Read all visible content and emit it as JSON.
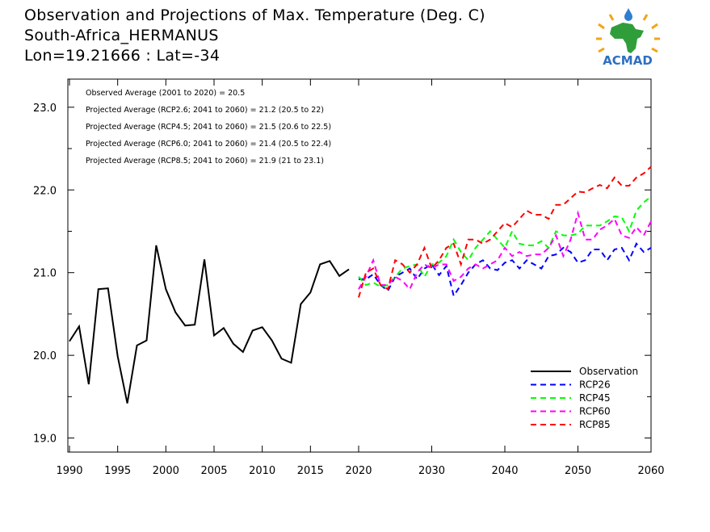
{
  "chart_data": {
    "type": "line",
    "title": [
      "Observation and Projections of Max. Temperature (Deg. C)",
      "South-Africa_HERMANUS",
      "Lon=19.21666 : Lat=-34"
    ],
    "logo_text": "ACMAD",
    "annotations": [
      "Observed Average (2001 to 2020) = 20.5",
      "Projected Average (RCP2.6; 2041 to 2060) = 21.2 (20.5 to 22)",
      "Projected Average (RCP4.5; 2041 to 2060) = 21.5 (20.6 to 22.5)",
      "Projected Average (RCP6.0; 2041 to 2060) = 21.4 (20.5 to 22.4)",
      "Projected Average (RCP8.5; 2041 to 2060) = 21.9 (21 to 23.1)"
    ],
    "ylim": [
      18.83,
      23.34
    ],
    "yticks": [
      "19.0",
      "20.0",
      "21.0",
      "22.0",
      "23.0"
    ],
    "xticks": [
      "1990",
      "1995",
      "2000",
      "2005",
      "2010",
      "2015",
      "2020",
      "2030",
      "2040",
      "2050",
      "2060"
    ],
    "legend_position": "bottom-right",
    "grid": false,
    "observation": {
      "name": "Observation",
      "color": "#000000",
      "style": "solid",
      "x": [
        1990,
        1991,
        1992,
        1993,
        1994,
        1995,
        1996,
        1997,
        1998,
        1999,
        2000,
        2001,
        2002,
        2003,
        2004,
        2005,
        2006,
        2007,
        2008,
        2009,
        2010,
        2011,
        2012,
        2013,
        2014,
        2015,
        2016,
        2017,
        2018,
        2019
      ],
      "values": [
        20.17,
        20.35,
        19.65,
        20.8,
        20.81,
        19.99,
        19.42,
        20.12,
        20.18,
        21.33,
        20.8,
        20.52,
        20.36,
        20.37,
        21.16,
        20.24,
        20.33,
        20.14,
        20.04,
        20.3,
        20.34,
        20.18,
        19.96,
        19.91,
        20.62,
        20.76,
        21.1,
        21.14,
        20.96,
        21.04
      ]
    },
    "projection_x_start": 2020,
    "projection_x_end": 2060,
    "series": [
      {
        "name": "RCP26",
        "color": "#0000ff",
        "style": "dashed",
        "values": [
          20.92,
          20.92,
          20.98,
          20.85,
          20.78,
          20.95,
          21.0,
          21.05,
          20.92,
          21.05,
          21.1,
          20.97,
          21.08,
          20.72,
          20.85,
          21.0,
          21.1,
          21.15,
          21.05,
          21.03,
          21.12,
          21.15,
          21.05,
          21.15,
          21.1,
          21.05,
          21.2,
          21.22,
          21.3,
          21.25,
          21.12,
          21.15,
          21.28,
          21.28,
          21.15,
          21.28,
          21.3,
          21.15,
          21.35,
          21.25,
          21.3
        ]
      },
      {
        "name": "RCP45",
        "color": "#00ff00",
        "style": "dashed",
        "values": [
          20.95,
          20.85,
          20.88,
          20.83,
          20.85,
          20.95,
          21.05,
          21.08,
          21.1,
          20.95,
          21.1,
          21.12,
          21.2,
          21.4,
          21.25,
          21.15,
          21.3,
          21.4,
          21.5,
          21.4,
          21.3,
          21.5,
          21.35,
          21.33,
          21.33,
          21.38,
          21.3,
          21.5,
          21.45,
          21.45,
          21.47,
          21.57,
          21.57,
          21.57,
          21.62,
          21.68,
          21.67,
          21.5,
          21.75,
          21.85,
          21.92
        ]
      },
      {
        "name": "RCP60",
        "color": "#ff00ff",
        "style": "dashed",
        "values": [
          20.8,
          20.95,
          21.15,
          20.85,
          20.85,
          20.95,
          20.9,
          20.8,
          21.0,
          21.1,
          21.05,
          21.1,
          21.1,
          20.9,
          20.95,
          21.05,
          21.1,
          21.05,
          21.1,
          21.15,
          21.3,
          21.2,
          21.25,
          21.2,
          21.22,
          21.22,
          21.3,
          21.45,
          21.2,
          21.4,
          21.72,
          21.4,
          21.4,
          21.52,
          21.57,
          21.65,
          21.45,
          21.42,
          21.55,
          21.45,
          21.62
        ]
      },
      {
        "name": "RCP85",
        "color": "#ff0000",
        "style": "dashed",
        "values": [
          20.7,
          21.0,
          21.05,
          20.85,
          20.8,
          21.15,
          21.1,
          21.0,
          21.1,
          21.3,
          21.05,
          21.15,
          21.3,
          21.35,
          21.1,
          21.4,
          21.4,
          21.35,
          21.4,
          21.5,
          21.6,
          21.55,
          21.65,
          21.75,
          21.7,
          21.7,
          21.65,
          21.82,
          21.82,
          21.9,
          21.98,
          21.97,
          22.02,
          22.06,
          22.02,
          22.15,
          22.05,
          22.05,
          22.15,
          22.2,
          22.28
        ]
      }
    ]
  }
}
